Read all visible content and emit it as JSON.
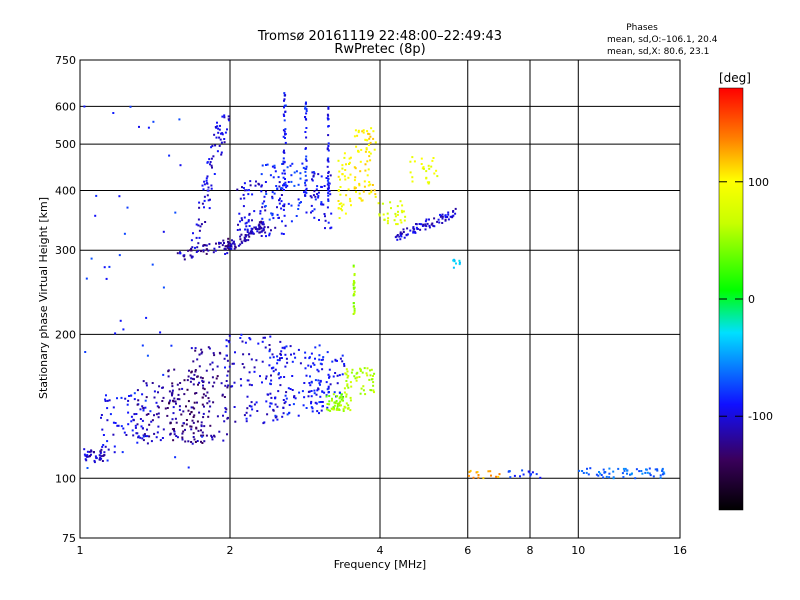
{
  "chart_data": {
    "type": "scatter",
    "title": "Tromsø 20161119 22:48:00–22:49:43",
    "subtitle": "RwPretec (8p)",
    "xlabel": "Frequency [MHz]",
    "ylabel": "Stationary phase Virtual Height [km]",
    "x_scale": "log",
    "y_scale": "log",
    "xlim": [
      1,
      16
    ],
    "ylim": [
      75,
      750
    ],
    "x_ticks": [
      1,
      2,
      4,
      6,
      8,
      10,
      16
    ],
    "y_ticks": [
      75,
      100,
      200,
      300,
      400,
      500,
      600,
      750
    ],
    "grid": true,
    "legend": {
      "title": "Phases",
      "lines": [
        "mean, sd,O:–106.1, 20.4",
        "mean, sd,X:  80.6, 23.1"
      ],
      "placement": "top-right"
    },
    "colorbar": {
      "label": "[deg]",
      "range": [
        -180,
        180
      ],
      "ticks": [
        100,
        0,
        -100
      ],
      "colormap": "rainbow"
    },
    "series": [
      {
        "description_role": "ionogram echo clusters [fmin, fmax, hmin, hmax, phase_deg, count, shape]",
        "clusters": [
          [
            1.0,
            1.12,
            108,
            116,
            -115,
            40,
            "blob"
          ],
          [
            1.1,
            1.4,
            112,
            150,
            -105,
            70,
            "blob"
          ],
          [
            1.3,
            1.6,
            120,
            160,
            -120,
            70,
            "blob"
          ],
          [
            1.5,
            1.8,
            118,
            170,
            -135,
            80,
            "blob"
          ],
          [
            1.6,
            2.0,
            118,
            190,
            -125,
            100,
            "blob"
          ],
          [
            1.95,
            2.6,
            130,
            200,
            -110,
            110,
            "blob"
          ],
          [
            2.4,
            3.1,
            135,
            190,
            -100,
            100,
            "blob"
          ],
          [
            2.9,
            3.4,
            140,
            185,
            -100,
            60,
            "blob"
          ],
          [
            3.1,
            3.4,
            138,
            150,
            40,
            30,
            "blob"
          ],
          [
            3.2,
            3.5,
            138,
            150,
            50,
            30,
            "blob"
          ],
          [
            3.4,
            3.9,
            150,
            170,
            55,
            50,
            "blob"
          ],
          [
            3.5,
            3.6,
            220,
            280,
            45,
            25,
            "vline"
          ],
          [
            1.57,
            2.0,
            290,
            310,
            -125,
            50,
            "line"
          ],
          [
            1.6,
            1.95,
            300,
            580,
            -110,
            80,
            "streak"
          ],
          [
            1.95,
            2.35,
            300,
            340,
            -120,
            80,
            "line"
          ],
          [
            2.05,
            2.6,
            320,
            420,
            -110,
            80,
            "blob"
          ],
          [
            2.3,
            2.85,
            340,
            460,
            -90,
            70,
            "blob"
          ],
          [
            2.5,
            2.65,
            400,
            640,
            -100,
            40,
            "vline"
          ],
          [
            2.78,
            2.9,
            380,
            620,
            -95,
            35,
            "vline"
          ],
          [
            2.9,
            3.2,
            330,
            440,
            -105,
            50,
            "blob"
          ],
          [
            3.1,
            3.2,
            380,
            620,
            -100,
            35,
            "vline"
          ],
          [
            3.3,
            3.5,
            350,
            480,
            95,
            40,
            "blob"
          ],
          [
            3.55,
            3.95,
            380,
            540,
            105,
            70,
            "blob"
          ],
          [
            3.95,
            4.5,
            340,
            380,
            75,
            30,
            "blob"
          ],
          [
            4.3,
            5.7,
            320,
            360,
            -110,
            80,
            "line"
          ],
          [
            4.6,
            5.3,
            410,
            470,
            85,
            25,
            "blob"
          ],
          [
            5.6,
            5.8,
            275,
            290,
            -40,
            10,
            "blob"
          ],
          [
            6.0,
            7.0,
            100,
            104,
            130,
            15,
            "blob"
          ],
          [
            7.2,
            8.5,
            100,
            104,
            -90,
            15,
            "blob"
          ],
          [
            10.0,
            15.0,
            100,
            105,
            -70,
            60,
            "blob"
          ],
          [
            1.0,
            1.8,
            100,
            600,
            -90,
            45,
            "scatter"
          ]
        ]
      }
    ]
  }
}
